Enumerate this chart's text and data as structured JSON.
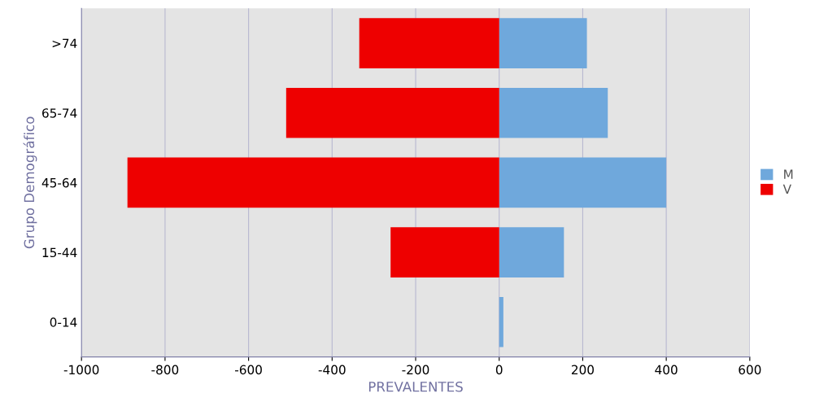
{
  "chart_data": {
    "type": "bar",
    "orientation": "horizontal",
    "stacked": true,
    "categories": [
      ">74",
      "65-74",
      "45-64",
      "15-44",
      "0-14"
    ],
    "series": [
      {
        "name": "M",
        "color": "#6fa8dc",
        "values": [
          210,
          260,
          400,
          155,
          10
        ]
      },
      {
        "name": "V",
        "color": "#ee0000",
        "values": [
          -335,
          -510,
          -890,
          -260,
          0
        ]
      }
    ],
    "xlim": [
      -1000,
      600
    ],
    "xticks": [
      -1000,
      -800,
      -600,
      -400,
      -200,
      0,
      200,
      400,
      600
    ],
    "xlabel": "PREVALENTES",
    "ylabel": "Grupo Demográfico",
    "grid": "x",
    "legend": "right"
  }
}
